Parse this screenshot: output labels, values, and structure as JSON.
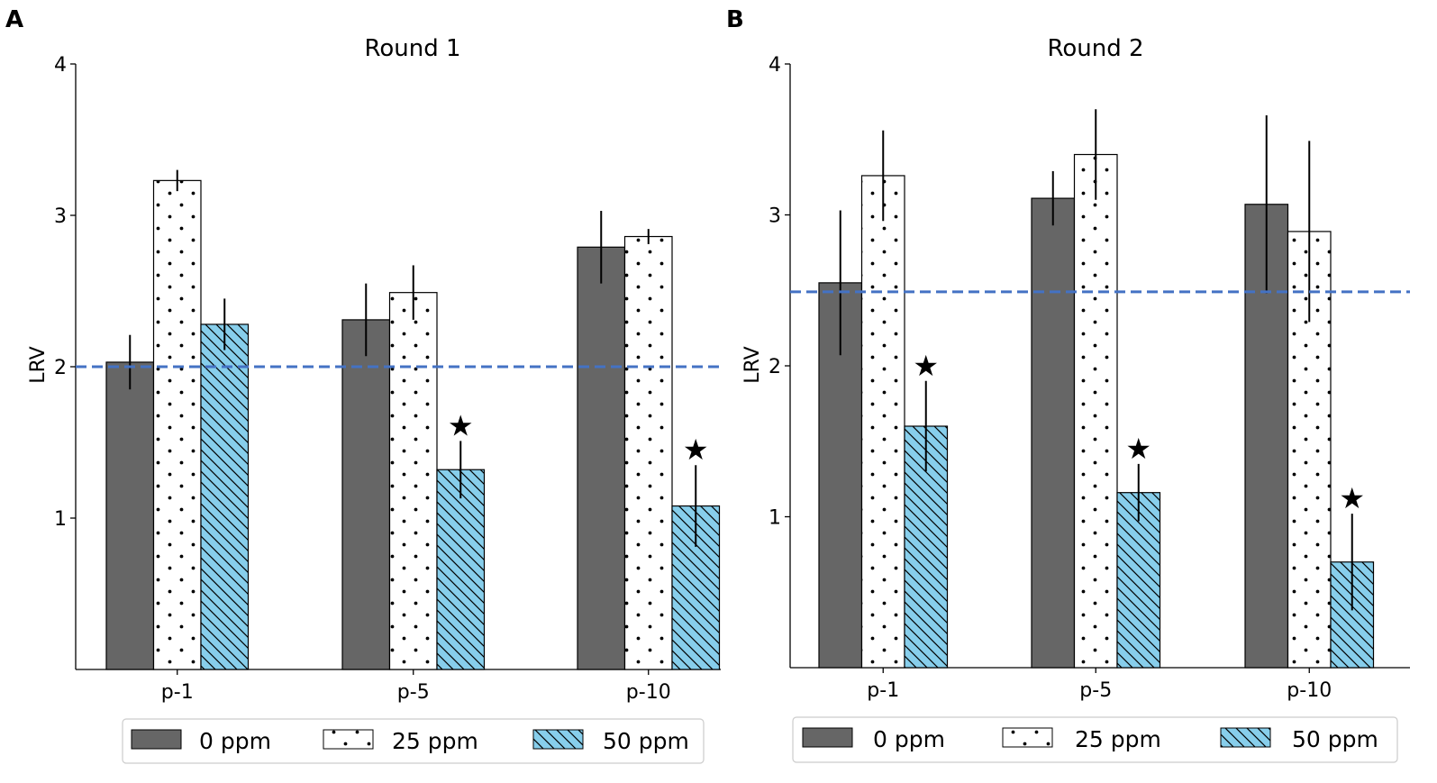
{
  "colors": {
    "ppm0": "#666666",
    "ppm25": "#ffffff",
    "ppm50": "#87ceeb",
    "reference_line": "#4472c4",
    "edge": "#000000"
  },
  "chart_data": [
    {
      "type": "bar",
      "panel": "A",
      "title": "Round 1",
      "xlabel": "",
      "ylabel": "LRV",
      "ylim": [
        0,
        4
      ],
      "yticks": [
        1,
        2,
        3,
        4
      ],
      "categories": [
        "p-1",
        "p-5",
        "p-10"
      ],
      "reference_line": 2.0,
      "legend_position": "bottom",
      "series": [
        {
          "name": "0 ppm",
          "pattern": "solid",
          "values": [
            2.03,
            2.31,
            2.79
          ],
          "errors": [
            0.18,
            0.24,
            0.24
          ]
        },
        {
          "name": "25 ppm",
          "pattern": "dots",
          "values": [
            3.23,
            2.49,
            2.86
          ],
          "errors": [
            0.07,
            0.18,
            0.05
          ]
        },
        {
          "name": "50 ppm",
          "pattern": "hatch",
          "values": [
            2.28,
            1.32,
            1.08
          ],
          "errors": [
            0.17,
            0.19,
            0.27
          ]
        }
      ],
      "significance": [
        {
          "series": "50 ppm",
          "category": "p-5",
          "marker": "★"
        },
        {
          "series": "50 ppm",
          "category": "p-10",
          "marker": "★"
        }
      ]
    },
    {
      "type": "bar",
      "panel": "B",
      "title": "Round 2",
      "xlabel": "",
      "ylabel": "LRV",
      "ylim": [
        0,
        4
      ],
      "yticks": [
        1,
        2,
        3,
        4
      ],
      "categories": [
        "p-1",
        "p-5",
        "p-10"
      ],
      "reference_line": 2.49,
      "legend_position": "bottom",
      "series": [
        {
          "name": "0 ppm",
          "pattern": "solid",
          "values": [
            2.55,
            3.11,
            3.07
          ],
          "errors": [
            0.48,
            0.18,
            0.59
          ]
        },
        {
          "name": "25 ppm",
          "pattern": "dots",
          "values": [
            3.26,
            3.4,
            2.89
          ],
          "errors": [
            0.3,
            0.3,
            0.6
          ]
        },
        {
          "name": "50 ppm",
          "pattern": "hatch",
          "values": [
            1.6,
            1.16,
            0.7
          ],
          "errors": [
            0.3,
            0.19,
            0.32
          ]
        }
      ],
      "significance": [
        {
          "series": "50 ppm",
          "category": "p-1",
          "marker": "★"
        },
        {
          "series": "50 ppm",
          "category": "p-5",
          "marker": "★"
        },
        {
          "series": "50 ppm",
          "category": "p-10",
          "marker": "★"
        }
      ]
    }
  ]
}
